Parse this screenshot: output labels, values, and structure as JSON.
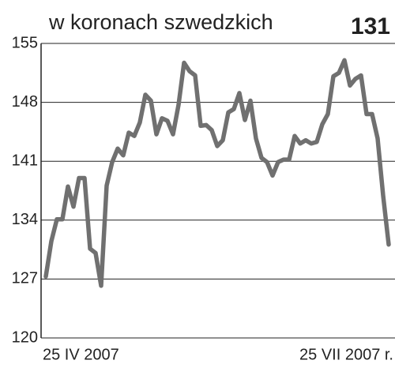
{
  "chart_data": {
    "type": "line",
    "title": "w koronach szwedzkich",
    "annotation": "131",
    "categories": [
      "25 IV 2007",
      null,
      null,
      null,
      null,
      null,
      null,
      null,
      null,
      null,
      null,
      null,
      null,
      null,
      null,
      null,
      null,
      null,
      null,
      null,
      null,
      null,
      null,
      null,
      null,
      null,
      null,
      null,
      null,
      null,
      null,
      null,
      null,
      null,
      null,
      null,
      null,
      null,
      null,
      null,
      null,
      null,
      null,
      null,
      null,
      null,
      null,
      null,
      null,
      null,
      null,
      null,
      null,
      null,
      null,
      null,
      null,
      null,
      null,
      null,
      null,
      null,
      "25 VII 2007 r."
    ],
    "values": [
      127.3,
      131.5,
      134.1,
      134.1,
      138,
      135.6,
      139,
      139,
      130.6,
      130.1,
      126.2,
      138.1,
      140.9,
      142.5,
      141.7,
      144.4,
      144,
      145.6,
      148.9,
      148.2,
      144.2,
      146.1,
      145.8,
      144.2,
      147.7,
      152.7,
      151.7,
      151.2,
      145.2,
      145.3,
      144.7,
      142.8,
      143.5,
      146.8,
      147.2,
      149.1,
      145.9,
      148.2,
      143.7,
      141.4,
      140.9,
      139.3,
      140.9,
      141.2,
      141.2,
      144,
      143.1,
      143.5,
      143.1,
      143.3,
      145.4,
      146.6,
      151.1,
      151.5,
      153,
      150,
      150.8,
      151.2,
      146.6,
      146.6,
      143.7,
      136.9,
      131.1
    ],
    "color": "#707070",
    "ylim": [
      120,
      155
    ],
    "yticks": [
      120,
      127,
      134,
      141,
      148,
      155
    ],
    "grid": true
  }
}
